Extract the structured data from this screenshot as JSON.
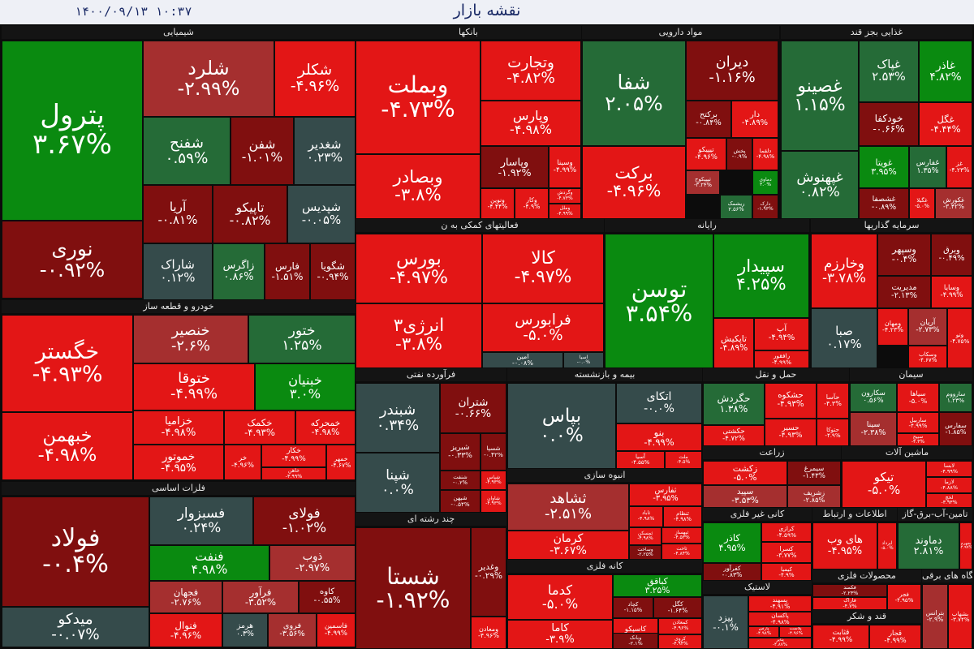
{
  "app": {
    "title": "نقشه بازار",
    "datetime": "۱۴۰۰/۰۹/۱۳   ۱۰:۳۷"
  },
  "colors": {
    "up_strong": "#0a8a10",
    "up_mild": "#256b37",
    "flat": "#354b4b",
    "down_mild": "#a52f2f",
    "down_dark": "#800f0f",
    "down_strong": "#e31616"
  },
  "sectors": [
    {
      "name": "شیمیایی",
      "tiles": [
        {
          "n": "پترول",
          "c": "۳.۶۷%"
        },
        {
          "n": "نوری",
          "c": "-۰.۹۲%"
        },
        {
          "n": "شلرد",
          "c": "-۲.۹۹%"
        },
        {
          "n": "شکلر",
          "c": "-۴.۹۶%"
        },
        {
          "n": "شفنح",
          "c": "۰.۵۹%"
        },
        {
          "n": "شفن",
          "c": "-۱.۰۱%"
        },
        {
          "n": "شغدیر",
          "c": "۰.۲۳%"
        },
        {
          "n": "آریا",
          "c": "-۰.۸۱%"
        },
        {
          "n": "تاپیکو",
          "c": "-۰.۸۲%"
        },
        {
          "n": "شپدیس",
          "c": "-۰.۰۵%"
        },
        {
          "n": "شاراک",
          "c": "۰.۱۲%"
        },
        {
          "n": "زاگرس",
          "c": "۰.۸۶%"
        },
        {
          "n": "فارس",
          "c": "-۱.۵۱%"
        },
        {
          "n": "شگویا",
          "c": "-۰.۹۴%"
        }
      ]
    },
    {
      "name": "بانکها",
      "tiles": [
        {
          "n": "وبملت",
          "c": "-۴.۷۳%"
        },
        {
          "n": "وبصادر",
          "c": "-۳.۸%"
        },
        {
          "n": "وتجارت",
          "c": "-۴.۸۲%"
        },
        {
          "n": "وپارس",
          "c": "-۴.۹۸%"
        },
        {
          "n": "وپاسار",
          "c": "-۱.۹۲%"
        },
        {
          "n": "وسینا",
          "c": "-۴.۹۹%"
        },
        {
          "n": "ونوین",
          "c": "-۴.۴۴%"
        },
        {
          "n": "وکار",
          "c": "-۴.۹%"
        },
        {
          "n": "وگردش",
          "c": "-۴.۷۳%"
        },
        {
          "n": "وملل",
          "c": "-۴.۹۹%"
        }
      ]
    },
    {
      "name": "مواد دارویی",
      "tiles": [
        {
          "n": "شفا",
          "c": "۲.۰۵%"
        },
        {
          "n": "برکت",
          "c": "-۴.۹۶%"
        },
        {
          "n": "دیران",
          "c": "-۱.۱۶%"
        },
        {
          "n": "برکتح",
          "c": "-۰.۸۴%"
        },
        {
          "n": "دار",
          "c": "-۴.۸۹%"
        },
        {
          "n": "تیپیکو",
          "c": "-۴.۹۶%"
        },
        {
          "n": "پخش",
          "c": "-۰.۹%"
        },
        {
          "n": "دلقما",
          "c": "-۴.۹۸%"
        },
        {
          "n": "تیپیکوح",
          "c": "-۳.۲۴%"
        },
        {
          "n": "ریشمک",
          "c": "۲.۵۶%"
        },
        {
          "n": "دماوی",
          "c": "۳.۰%"
        },
        {
          "n": "دارک",
          "c": "-۱.۹۳%"
        }
      ]
    },
    {
      "name": "غذایی بجز قند",
      "tiles": [
        {
          "n": "غصینو",
          "c": "۱.۱۵%"
        },
        {
          "n": "غپهنوش",
          "c": "۰.۸۲%"
        },
        {
          "n": "غپاک",
          "c": "۲.۵۳%"
        },
        {
          "n": "غاذر",
          "c": "۴.۸۲%"
        },
        {
          "n": "خودکفا",
          "c": "-۰.۶۶%"
        },
        {
          "n": "غگل",
          "c": "-۴.۴۴%"
        },
        {
          "n": "غویتا",
          "c": "۳.۹۵%"
        },
        {
          "n": "غفارس",
          "c": "۱.۳۵%"
        },
        {
          "n": "غز",
          "c": "-۴.۲۳%"
        },
        {
          "n": "غشصفا",
          "c": "-۰.۸۹%"
        },
        {
          "n": "غگیلا",
          "c": "-۵.۰%"
        },
        {
          "n": "غکورش",
          "c": "-۳.۴۲%"
        }
      ]
    },
    {
      "name": "خودرو و قطعه ساز",
      "tiles": [
        {
          "n": "خگستر",
          "c": "-۴.۹۳%"
        },
        {
          "n": "خبهمن",
          "c": "-۴.۹۸%"
        },
        {
          "n": "خنصیر",
          "c": "-۲.۶%"
        },
        {
          "n": "ختور",
          "c": "۱.۲۵%"
        },
        {
          "n": "ختوقا",
          "c": "-۴.۹۹%"
        },
        {
          "n": "خبنیان",
          "c": "۳.۰%"
        },
        {
          "n": "خزامیا",
          "c": "-۴.۹۸%"
        },
        {
          "n": "خکمک",
          "c": "-۴.۹۳%"
        },
        {
          "n": "خمحرکه",
          "c": "-۴.۹۸%"
        },
        {
          "n": "خموتور",
          "c": "-۴.۹۵%"
        },
        {
          "n": "خر",
          "c": "-۴.۹۶%"
        },
        {
          "n": "خکار",
          "c": "-۴.۹۹%"
        },
        {
          "n": "خاهن",
          "c": "-۳.۹۹%"
        },
        {
          "n": "خمهر",
          "c": "-۴.۶۷%"
        }
      ]
    },
    {
      "name": "فلزات اساسی",
      "tiles": [
        {
          "n": "فولاد",
          "c": "-۰.۴%"
        },
        {
          "n": "میدکو",
          "c": "-۰.۰۷%"
        },
        {
          "n": "فسبزوار",
          "c": "۰.۲۴%"
        },
        {
          "n": "فولای",
          "c": "-۱.۰۲%"
        },
        {
          "n": "فنفت",
          "c": "۴.۹۸%"
        },
        {
          "n": "ذوب",
          "c": "-۲.۹۷%"
        },
        {
          "n": "فجهان",
          "c": "-۲.۷۶%"
        },
        {
          "n": "فرآور",
          "c": "-۳.۵۲%"
        },
        {
          "n": "کاوه",
          "c": "-۰.۵۵%"
        },
        {
          "n": "فنوال",
          "c": "-۴.۹۶%"
        },
        {
          "n": "هرمز",
          "c": "۰.۳%"
        },
        {
          "n": "فروی",
          "c": "-۳.۵۶%"
        },
        {
          "n": "فاسمین",
          "c": "-۴.۹۹%"
        }
      ]
    },
    {
      "name": "فعالیتهای کمکی به ن",
      "tiles": [
        {
          "n": "بورس",
          "c": "-۴.۹۷%"
        },
        {
          "n": "کالا",
          "c": "-۴.۹۷%"
        },
        {
          "n": "انرژی۳",
          "c": "-۳.۸%"
        },
        {
          "n": "فرابورس",
          "c": "-۵.۰%"
        },
        {
          "n": "امین",
          "c": "-۰.۰۸%"
        },
        {
          "n": "اسیا",
          "c": "-۰.۰%"
        }
      ]
    },
    {
      "name": "رایانه",
      "tiles": [
        {
          "n": "توسن",
          "c": "۳.۵۴%"
        },
        {
          "n": "سپیدار",
          "c": "۴.۲۵%"
        },
        {
          "n": "تاپکیش",
          "c": "-۴.۸۹%"
        },
        {
          "n": "آپ",
          "c": "-۴.۹۴%"
        },
        {
          "n": "رافقور",
          "c": "-۴.۹۹%"
        }
      ]
    },
    {
      "name": "سرمایه گذاریها",
      "tiles": [
        {
          "n": "وخارزم",
          "c": "-۳.۷۸%"
        },
        {
          "n": "وسپهر",
          "c": "-۰.۴%"
        },
        {
          "n": "وبرق",
          "c": "-۰.۴۹%"
        },
        {
          "n": "صبا",
          "c": "۰.۱۷%"
        },
        {
          "n": "مدیریت",
          "c": "-۲.۱۳%"
        },
        {
          "n": "وسایا",
          "c": "-۴.۹۹%"
        },
        {
          "n": "ومهان",
          "c": "-۴.۲۳%"
        },
        {
          "n": "آریان",
          "c": "-۲.۷۳%"
        },
        {
          "n": "وتو",
          "c": "-۴.۷۵%"
        },
        {
          "n": "وسکاب",
          "c": "-۴.۶۷%"
        }
      ]
    },
    {
      "name": "فرآورده نفتی",
      "tiles": [
        {
          "n": "شبندر",
          "c": "۰.۳۴%"
        },
        {
          "n": "شپنا",
          "c": "۰.۰%"
        },
        {
          "n": "شتران",
          "c": "-۰.۶۶%"
        },
        {
          "n": "شبریز",
          "c": "-۰.۳۳%"
        },
        {
          "n": "شسپا",
          "c": "-۰.۴۲%"
        },
        {
          "n": "شنفت",
          "c": "-۰.۲%"
        },
        {
          "n": "شپاس",
          "c": "-۴.۹۳%"
        },
        {
          "n": "شیهن",
          "c": "-۰.۵۴%"
        },
        {
          "n": "شاوان",
          "c": "-۴.۹۳%"
        }
      ]
    },
    {
      "name": "بیمه و بازنشسته",
      "tiles": [
        {
          "n": "بپاس",
          "c": "۰.۰%"
        },
        {
          "n": "اتکای",
          "c": "-۰.۰%"
        },
        {
          "n": "بنو",
          "c": "-۴.۹۹%"
        },
        {
          "n": "آسیا",
          "c": "-۴.۵۵%"
        },
        {
          "n": "ملت",
          "c": "-۴.۵%"
        }
      ]
    },
    {
      "name": "حمل و نقل",
      "tiles": [
        {
          "n": "حگردش",
          "c": "۱.۳۸%"
        },
        {
          "n": "حکشتی",
          "c": "-۴.۷۲%"
        },
        {
          "n": "حشکوه",
          "c": "-۴.۹۳%"
        },
        {
          "n": "حآسا",
          "c": "-۴.۳%"
        },
        {
          "n": "حسیر",
          "c": "-۴.۹۳%"
        },
        {
          "n": "حتوکا",
          "c": "-۴.۹%"
        },
        {
          "n": "حفارس",
          "c": "-۴.۹۷%"
        }
      ]
    },
    {
      "name": "سیمان",
      "tiles": [
        {
          "n": "سکارون",
          "c": "۰.۵۶%"
        },
        {
          "n": "سیاها",
          "c": "-۵.۰%"
        },
        {
          "n": "سارووم",
          "c": "۱.۲۳%"
        },
        {
          "n": "سینا",
          "c": "-۲.۳۸%"
        },
        {
          "n": "ساربیل",
          "c": "-۴.۹۹%"
        },
        {
          "n": "سپیح",
          "c": "-۴.۳%"
        },
        {
          "n": "سفارس",
          "c": "-۱.۸۵%"
        }
      ]
    },
    {
      "name": "زراعت",
      "tiles": [
        {
          "n": "زکشت",
          "c": "-۵.۰%"
        },
        {
          "n": "سیمرغ",
          "c": "-۱.۴۳%"
        },
        {
          "n": "سپید",
          "c": "-۳.۵۳%"
        },
        {
          "n": "زشریف",
          "c": "-۲.۸۵%"
        }
      ]
    },
    {
      "name": "ماشین آلات",
      "tiles": [
        {
          "n": "تیکو",
          "c": "-۵.۰%"
        },
        {
          "n": "لابسا",
          "c": "-۴.۹۹%"
        },
        {
          "n": "لازما",
          "c": "-۴.۸۸%"
        },
        {
          "n": "لخچ",
          "c": "-۳.۹۳%"
        },
        {
          "n": "لبوتان",
          "c": "-۰.۹۹%"
        }
      ]
    },
    {
      "name": "انبوه سازی",
      "tiles": [
        {
          "n": "ثشاهد",
          "c": "-۲.۵۱%"
        },
        {
          "n": "کرمان",
          "c": "-۳.۶۷%"
        },
        {
          "n": "ثفارس",
          "c": "-۳.۹۵%"
        },
        {
          "n": "ثاباد",
          "c": "-۴.۹۸%"
        },
        {
          "n": "ثنظام",
          "c": "-۴.۹۸%"
        },
        {
          "n": "ثمسکن",
          "c": "-۴.۹۸%"
        },
        {
          "n": "وساخت",
          "c": "-۲.۲۵%"
        },
        {
          "n": "ثبهساز",
          "c": "-۴.۵۳%"
        },
        {
          "n": "ثاخت",
          "c": "-۴.۸۴%"
        },
        {
          "n": "ثتران",
          "c": "-۴.۹۵%"
        },
        {
          "n": "ثنام",
          "c": "-۳.۸%"
        }
      ]
    },
    {
      "name": "کانی غیر فلزی",
      "tiles": [
        {
          "n": "کاذر",
          "c": "۴.۹۵%"
        },
        {
          "n": "کفرآور",
          "c": "-۰.۸۳%"
        },
        {
          "n": "کرازی",
          "c": "-۴.۵۹%"
        },
        {
          "n": "کسرا",
          "c": "-۳.۷۷%"
        },
        {
          "n": "کیمیا",
          "c": "-۴.۹%"
        },
        {
          "n": "کپشیر",
          "c": "-۴.۶۶%"
        }
      ]
    },
    {
      "name": "اطلاعات و ارتباط",
      "tiles": [
        {
          "n": "های وب",
          "c": "-۴.۹۵%"
        },
        {
          "n": "ابرداد",
          "c": "-۵.۰%"
        }
      ]
    },
    {
      "name": "تامین-آب-برق-گاز",
      "tiles": [
        {
          "n": "دماوند",
          "c": "۲.۸۱%"
        },
        {
          "n": "بجهرم",
          "c": "-۴.۹۹%"
        }
      ]
    },
    {
      "name": "چند رشته ای",
      "tiles": [
        {
          "n": "شستا",
          "c": "-۱.۹۲%"
        },
        {
          "n": "وغدیر",
          "c": "-۰.۲۹%"
        },
        {
          "n": "ومعادن",
          "c": "-۴.۹۶%"
        }
      ]
    },
    {
      "name": "کانه فلزی",
      "tiles": [
        {
          "n": "کدما",
          "c": "-۵.۰%"
        },
        {
          "n": "کاما",
          "c": "-۳.۹%"
        },
        {
          "n": "کباقق",
          "c": "۳.۲۵%"
        },
        {
          "n": "کچاد",
          "c": "-۱.۱۵%"
        },
        {
          "n": "کگل",
          "c": "-۱.۶۴%"
        },
        {
          "n": "کاسپکو",
          "c": "-۴.۹۹%"
        },
        {
          "n": "کمعادن",
          "c": "-۴.۹۶%"
        },
        {
          "n": "کروی",
          "c": "-۴.۹۴%"
        },
        {
          "n": "وبانک",
          "c": "-۲.۱%"
        }
      ]
    },
    {
      "name": "لاستیک",
      "tiles": [
        {
          "n": "پیزد",
          "c": "-۰.۱%"
        },
        {
          "n": "پسهند",
          "c": "-۴.۹۱%"
        },
        {
          "n": "پاکسان",
          "c": "-۴.۹۸%"
        },
        {
          "n": "پارس",
          "c": "-۴.۹۸%"
        },
        {
          "n": "پلاست",
          "c": "-۴.۹۶%"
        },
        {
          "n": "پتایر",
          "c": "-۴.۸۷%"
        }
      ]
    },
    {
      "name": "محصولات فلزی",
      "tiles": [
        {
          "n": "فکمند",
          "c": "-۲.۲۳%"
        },
        {
          "n": "فاراک",
          "c": "-۴.۷%"
        },
        {
          "n": "فجر",
          "c": "-۴.۹۵%"
        }
      ]
    },
    {
      "name": "قند و شکر",
      "tiles": [
        {
          "n": "قثابت",
          "c": "-۴.۹۹%"
        },
        {
          "n": "قجار",
          "c": "-۴.۹۹%"
        }
      ]
    },
    {
      "name": "دستگاه های برقی",
      "tiles": [
        {
          "n": "بترانس",
          "c": "-۲.۹%"
        },
        {
          "n": "بشهاب",
          "c": "-۳.۷۴%"
        }
      ]
    }
  ]
}
